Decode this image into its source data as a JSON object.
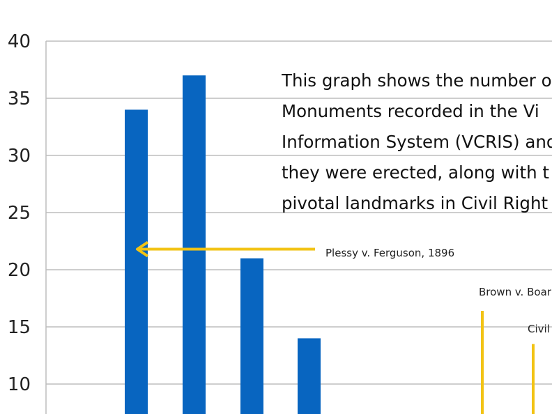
{
  "chart_data": {
    "type": "bar",
    "title": "",
    "xlabel": "",
    "ylabel": "",
    "ylim": [
      8,
      40
    ],
    "yticks": [
      10,
      15,
      20,
      25,
      30,
      35,
      40
    ],
    "grid": true,
    "colors": {
      "bar": "#0865C0",
      "annotation": "#F2C314",
      "grid": "#BDBDBD"
    },
    "values": [
      34,
      37,
      21,
      14
    ],
    "caption_lines": [
      "This graph shows the number o",
      "Monuments recorded in the Vi",
      "Information System (VCRIS) and",
      "they were erected, along with t",
      "pivotal landmarks in Civil Right"
    ],
    "annotations": [
      {
        "label": "Plessy v. Ferguson, 1896",
        "arrow_at": 21.8
      },
      {
        "label": "Brown v. Boar",
        "line_top": 16.4
      },
      {
        "label": "Civil",
        "line_top": 13.5
      }
    ]
  }
}
